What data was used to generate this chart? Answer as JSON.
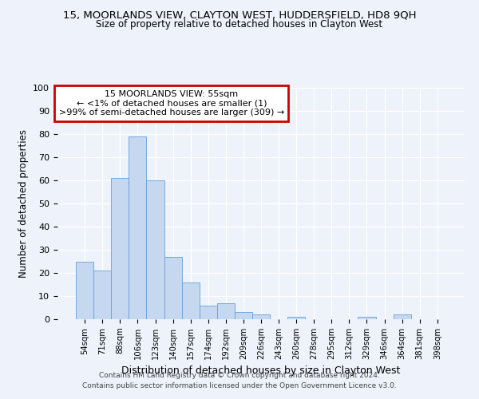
{
  "title_line1": "15, MOORLANDS VIEW, CLAYTON WEST, HUDDERSFIELD, HD8 9QH",
  "title_line2": "Size of property relative to detached houses in Clayton West",
  "xlabel": "Distribution of detached houses by size in Clayton West",
  "ylabel": "Number of detached properties",
  "bar_labels": [
    "54sqm",
    "71sqm",
    "88sqm",
    "106sqm",
    "123sqm",
    "140sqm",
    "157sqm",
    "174sqm",
    "192sqm",
    "209sqm",
    "226sqm",
    "243sqm",
    "260sqm",
    "278sqm",
    "295sqm",
    "312sqm",
    "329sqm",
    "346sqm",
    "364sqm",
    "381sqm",
    "398sqm"
  ],
  "bar_values": [
    25,
    21,
    61,
    79,
    60,
    27,
    16,
    6,
    7,
    3,
    2,
    0,
    1,
    0,
    0,
    0,
    1,
    0,
    2,
    0,
    0
  ],
  "bar_color": "#c5d8f0",
  "bar_edgecolor": "#6a9fd8",
  "ylim": [
    0,
    100
  ],
  "yticks": [
    0,
    10,
    20,
    30,
    40,
    50,
    60,
    70,
    80,
    90,
    100
  ],
  "annotation_box_text_line1": "15 MOORLANDS VIEW: 55sqm",
  "annotation_box_text_line2": "← <1% of detached houses are smaller (1)",
  "annotation_box_text_line3": ">99% of semi-detached houses are larger (309) →",
  "annotation_box_edgecolor": "#cc0000",
  "annotation_box_facecolor": "#ffffff",
  "bg_color": "#edf2fb",
  "grid_color": "#ffffff",
  "footer_line1": "Contains HM Land Registry data © Crown copyright and database right 2024.",
  "footer_line2": "Contains public sector information licensed under the Open Government Licence v3.0."
}
